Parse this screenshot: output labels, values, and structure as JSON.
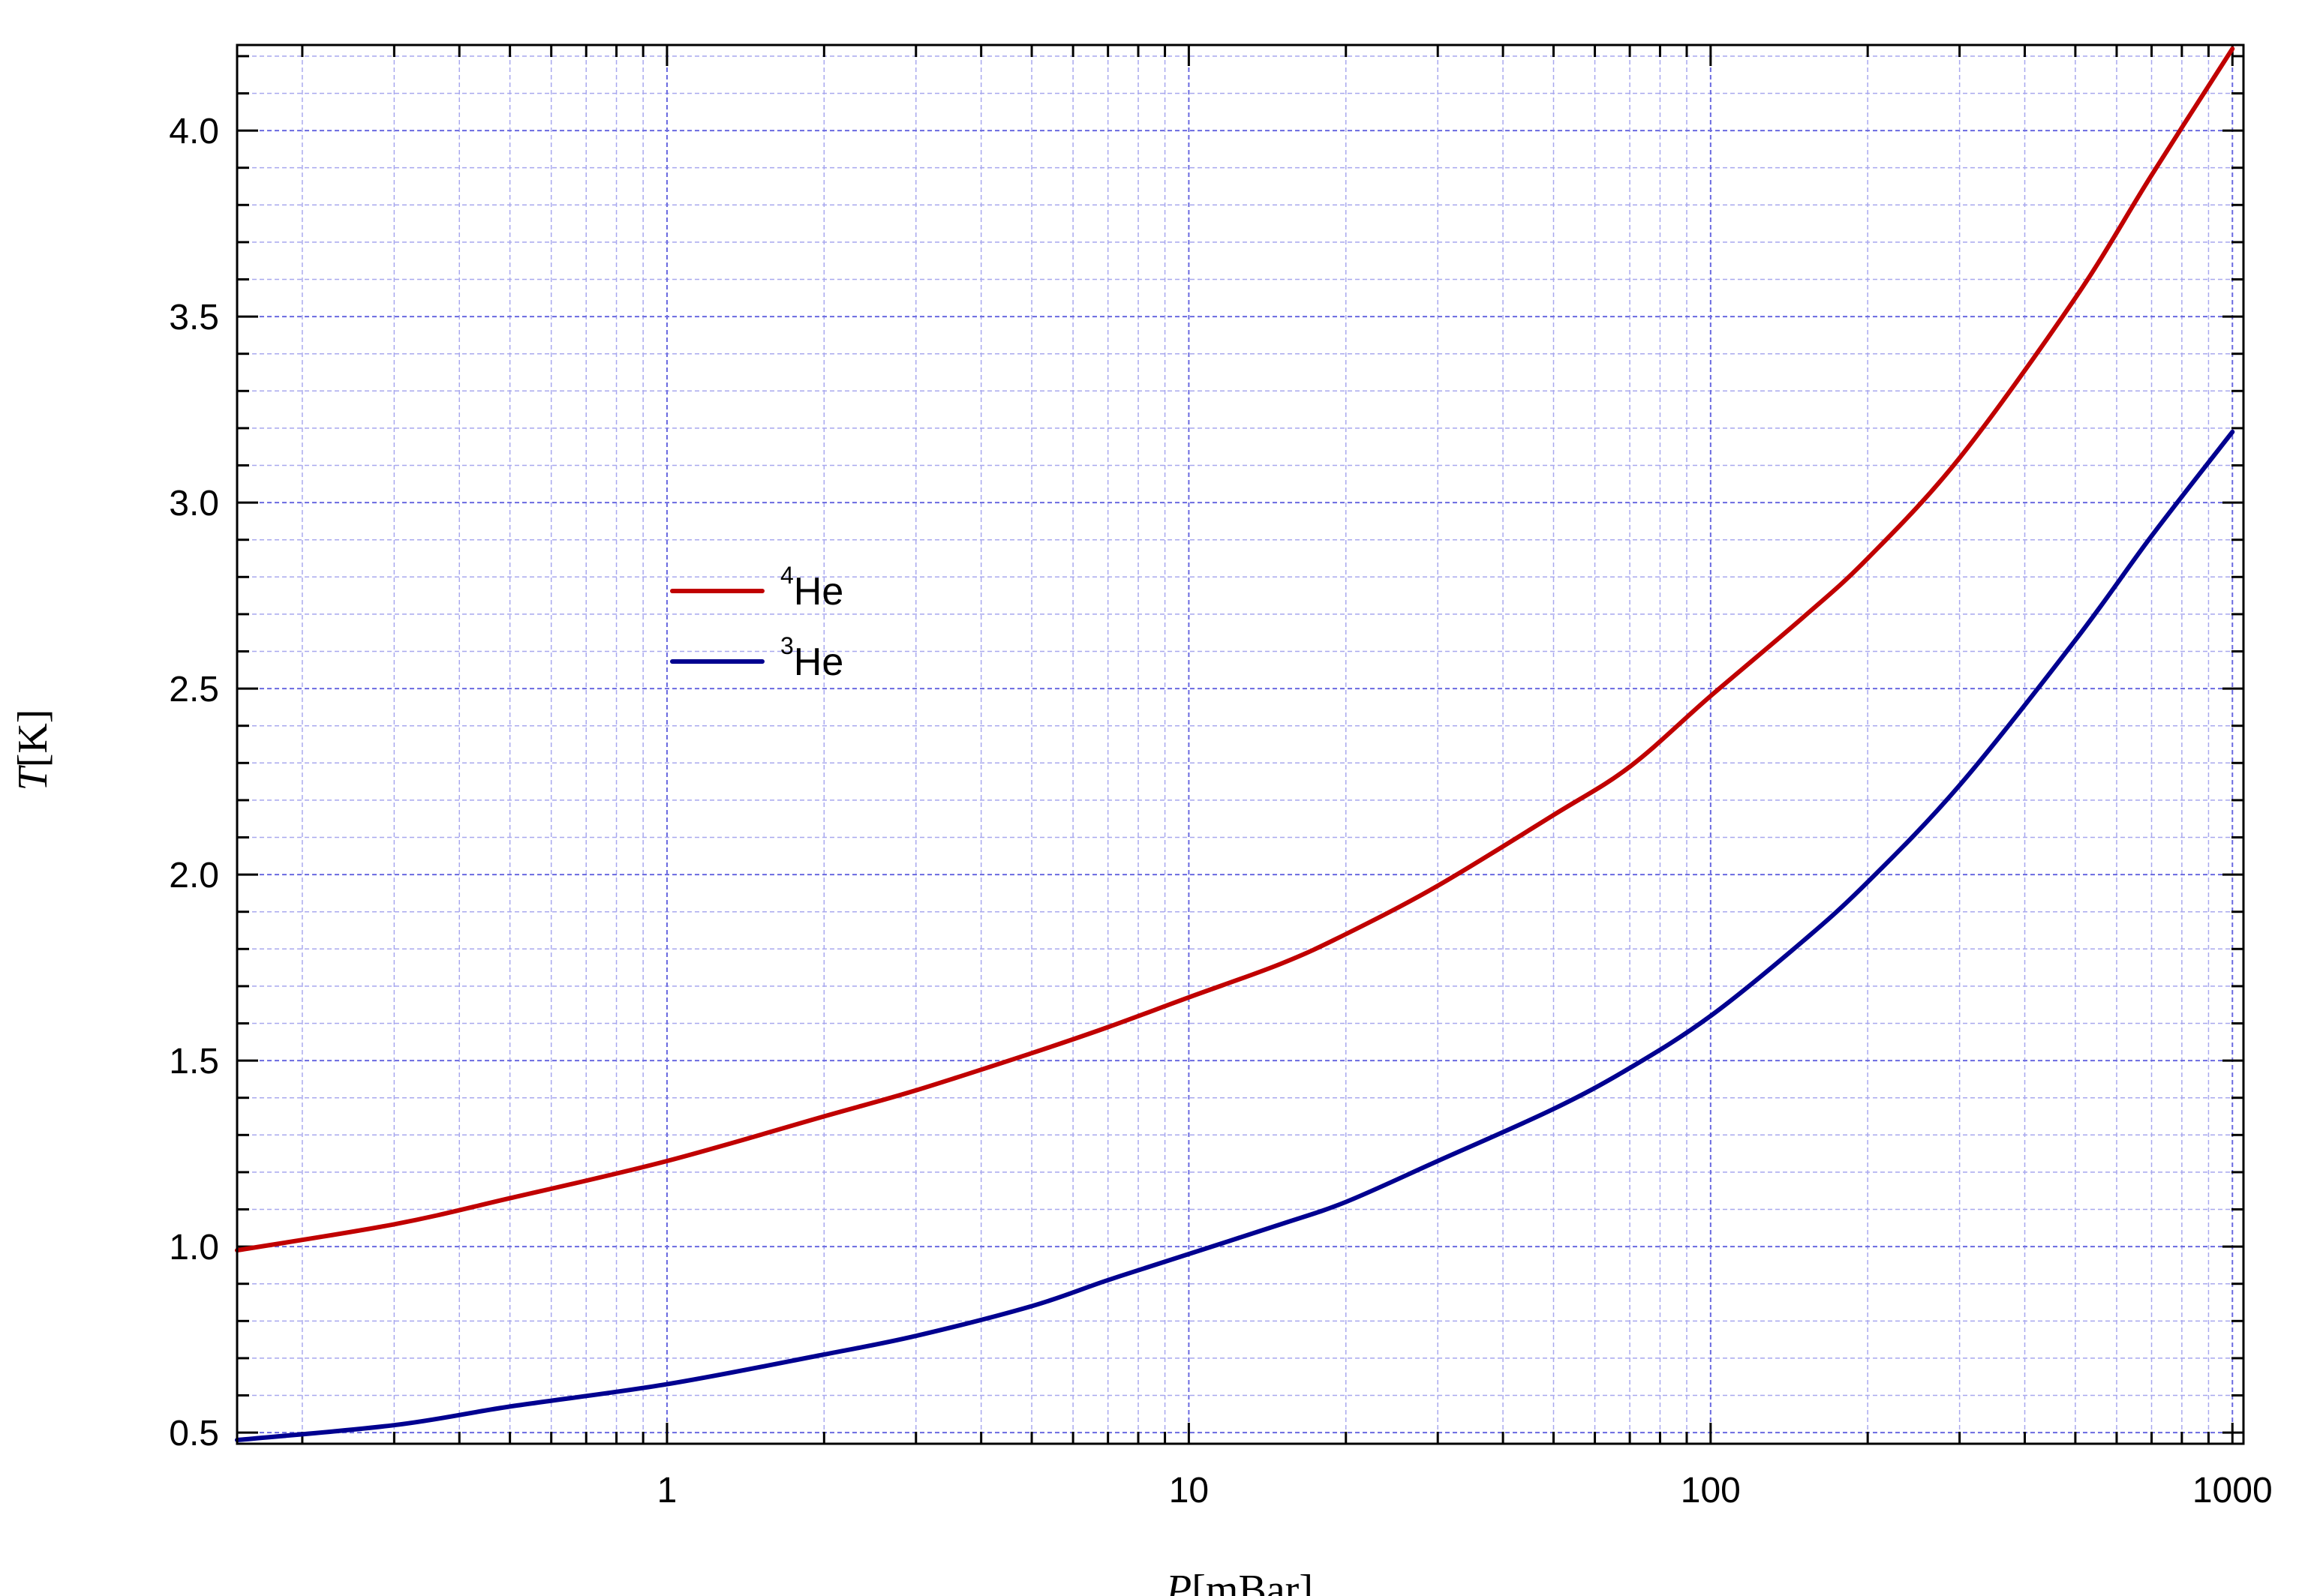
{
  "chart_data": {
    "type": "line",
    "title": "",
    "xlabel_var": "P",
    "xlabel_unit": "[mBar]",
    "ylabel_var": "T",
    "ylabel_unit": "[K]",
    "x_scale": "log",
    "xlim": [
      0.15,
      1050
    ],
    "ylim": [
      0.47,
      4.23
    ],
    "x_ticks": [
      1,
      10,
      100,
      1000
    ],
    "x_tick_labels": [
      "1",
      "10",
      "100",
      "1000"
    ],
    "y_ticks": [
      0.5,
      1.0,
      1.5,
      2.0,
      2.5,
      3.0,
      3.5,
      4.0
    ],
    "y_tick_labels": [
      "0.5",
      "1.0",
      "1.5",
      "2.0",
      "2.5",
      "3.0",
      "3.5",
      "4.0"
    ],
    "grid": true,
    "legend_placement": "upper-left-center",
    "series": [
      {
        "sup": "4",
        "label": "He",
        "color": "#c00000",
        "x": [
          0.15,
          0.3,
          0.5,
          1,
          2,
          3,
          5,
          7,
          10,
          15,
          20,
          30,
          50,
          70,
          100,
          150,
          200,
          300,
          500,
          700,
          1000
        ],
        "y": [
          0.99,
          1.06,
          1.13,
          1.23,
          1.35,
          1.42,
          1.52,
          1.59,
          1.67,
          1.76,
          1.84,
          1.97,
          2.16,
          2.29,
          2.48,
          2.69,
          2.85,
          3.12,
          3.55,
          3.88,
          4.22
        ]
      },
      {
        "sup": "3",
        "label": "He",
        "color": "#000090",
        "x": [
          0.15,
          0.3,
          0.5,
          1,
          2,
          3,
          5,
          7,
          10,
          15,
          20,
          30,
          50,
          70,
          100,
          150,
          200,
          300,
          500,
          700,
          1000
        ],
        "y": [
          0.48,
          0.52,
          0.57,
          0.63,
          0.71,
          0.76,
          0.84,
          0.91,
          0.98,
          1.06,
          1.12,
          1.23,
          1.37,
          1.48,
          1.62,
          1.82,
          1.98,
          2.24,
          2.63,
          2.91,
          3.19
        ]
      }
    ]
  }
}
